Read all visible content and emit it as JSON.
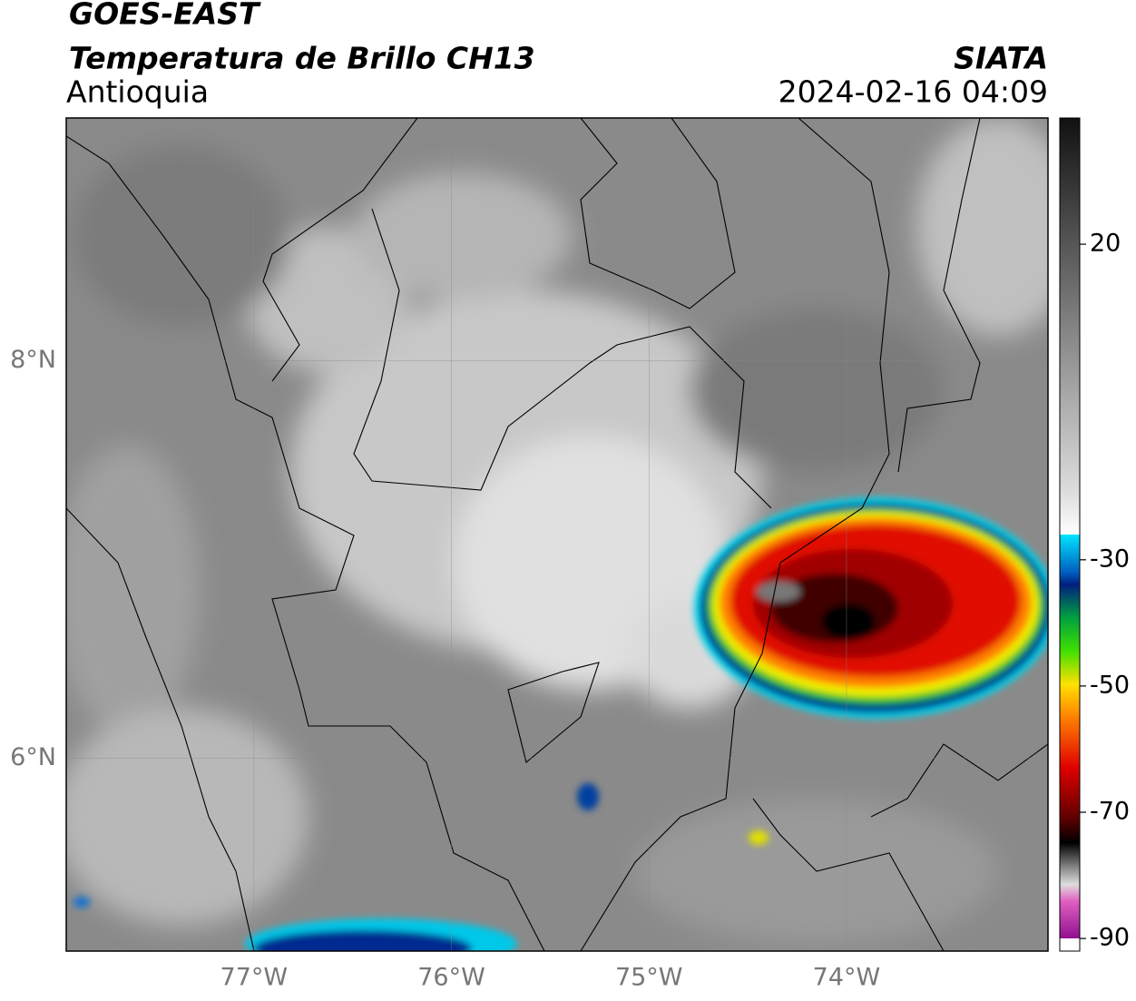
{
  "header": {
    "title": "GOES-EAST",
    "subtitle": "Temperatura de Brillo CH13",
    "region": "Antioquia",
    "source": "SIATA",
    "datetime": "2024-02-16 04:09"
  },
  "map": {
    "xlim": [
      -77.95,
      -72.98
    ],
    "ylim": [
      5.03,
      9.22
    ],
    "xticks": [
      {
        "value": -77,
        "label": "77°W"
      },
      {
        "value": -76,
        "label": "76°W"
      },
      {
        "value": -75,
        "label": "75°W"
      },
      {
        "value": -74,
        "label": "74°W"
      }
    ],
    "yticks": [
      {
        "value": 8,
        "label": "8°N"
      },
      {
        "value": 6,
        "label": "6°N"
      }
    ]
  },
  "colorbar": {
    "lim": [
      -92,
      40
    ],
    "ticks": [
      20,
      -30,
      -50,
      -70,
      -90
    ]
  }
}
